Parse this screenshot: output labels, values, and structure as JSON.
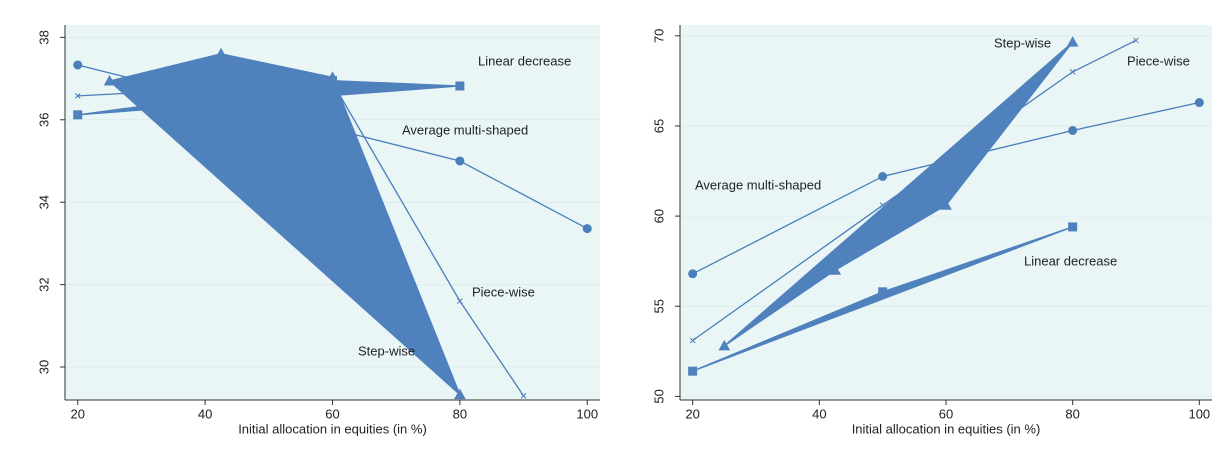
{
  "chart_data": [
    {
      "type": "line",
      "x_label": "Initial allocation in equities (in %)",
      "xlim": [
        18,
        102
      ],
      "xticks": [
        20,
        40,
        60,
        80,
        100
      ],
      "ylim": [
        29.2,
        38.3
      ],
      "yticks": [
        30,
        32,
        34,
        36,
        38
      ],
      "grid": true,
      "annotations": [
        "Linear decrease",
        "Average multi-shaped",
        "Piece-wise",
        "Step-wise"
      ],
      "series": [
        {
          "name": "Average multi-shaped",
          "color": "#4a7ebb",
          "marker": "circle",
          "filled": false,
          "x": [
            20,
            80,
            100
          ],
          "values": [
            37.33,
            35.0,
            33.36
          ]
        },
        {
          "name": "Piece-wise",
          "color": "#4a7ebb",
          "marker": "x",
          "filled": false,
          "x": [
            20,
            60,
            80,
            90
          ],
          "values": [
            36.58,
            36.9,
            31.6,
            29.3
          ]
        },
        {
          "name": "Step-wise",
          "color": "#4f81bd",
          "marker": "triangle",
          "filled": true,
          "x": [
            25,
            42.5,
            60,
            80
          ],
          "values": [
            36.94,
            37.6,
            37.03,
            29.33
          ]
        },
        {
          "name": "Linear decrease",
          "color": "#4f81bd",
          "marker": "square",
          "filled": true,
          "x": [
            20,
            60,
            80
          ],
          "values": [
            36.12,
            36.95,
            36.82
          ]
        }
      ]
    },
    {
      "type": "line",
      "x_label": "Initial allocation in equities (in %)",
      "xlim": [
        18,
        102
      ],
      "xticks": [
        20,
        40,
        60,
        80,
        100
      ],
      "ylim": [
        49.8,
        70.6
      ],
      "yticks": [
        50,
        55,
        60,
        65,
        70
      ],
      "grid": true,
      "annotations": [
        "Step-wise",
        "Piece-wise",
        "Average multi-shaped",
        "Linear decrease"
      ],
      "series": [
        {
          "name": "Average multi-shaped",
          "color": "#4a7ebb",
          "marker": "circle",
          "filled": false,
          "x": [
            20,
            50,
            80,
            100
          ],
          "values": [
            56.8,
            62.2,
            64.75,
            66.3
          ]
        },
        {
          "name": "Piece-wise",
          "color": "#4a7ebb",
          "marker": "x",
          "filled": false,
          "x": [
            20,
            50,
            80,
            90
          ],
          "values": [
            53.1,
            60.6,
            68.0,
            69.75
          ]
        },
        {
          "name": "Step-wise",
          "color": "#4f81bd",
          "marker": "triangle",
          "filled": true,
          "x": [
            25,
            42.5,
            60,
            80
          ],
          "values": [
            52.8,
            57.0,
            60.6,
            69.65
          ]
        },
        {
          "name": "Linear decrease",
          "color": "#4f81bd",
          "marker": "square",
          "filled": true,
          "x": [
            20,
            50,
            80
          ],
          "values": [
            51.4,
            55.8,
            59.4
          ]
        }
      ]
    }
  ]
}
